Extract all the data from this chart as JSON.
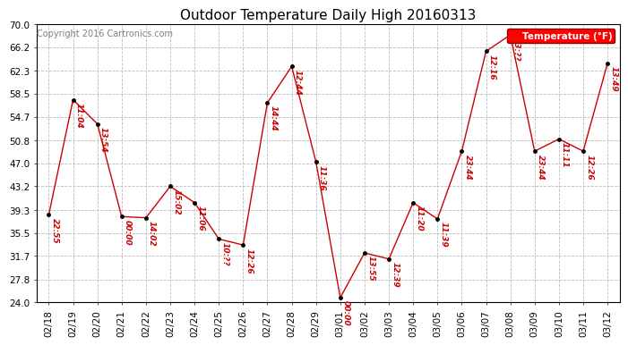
{
  "title": "Outdoor Temperature Daily High 20160313",
  "copyright": "Copyright 2016 Cartronics.com",
  "legend_label": "Temperature (°F)",
  "dates": [
    "02/18",
    "02/19",
    "02/20",
    "02/21",
    "02/22",
    "02/23",
    "02/24",
    "02/25",
    "02/26",
    "02/27",
    "02/28",
    "02/29",
    "03/01",
    "03/02",
    "03/03",
    "03/04",
    "03/05",
    "03/06",
    "03/07",
    "03/08",
    "03/09",
    "03/10",
    "03/11",
    "03/12"
  ],
  "temps": [
    38.5,
    57.5,
    53.5,
    38.2,
    38.0,
    43.2,
    40.5,
    34.5,
    33.5,
    57.0,
    63.0,
    47.2,
    24.8,
    32.2,
    31.2,
    40.5,
    37.8,
    49.0,
    65.5,
    68.2,
    49.0,
    51.0,
    49.0,
    63.5
  ],
  "annotations": [
    "22:55",
    "11:04",
    "13:54",
    "00:00",
    "14:02",
    "15:02",
    "11:06",
    "10:??",
    "12:26",
    "14:44",
    "12:44",
    "11:36",
    "00:00",
    "13:55",
    "12:39",
    "11:20",
    "11:39",
    "23:44",
    "12:16",
    "13:??",
    "23:44",
    "11:11",
    "12:26",
    "13:49"
  ],
  "ylim_min": 24.0,
  "ylim_max": 70.0,
  "yticks": [
    24.0,
    27.8,
    31.7,
    35.5,
    39.3,
    43.2,
    47.0,
    50.8,
    54.7,
    58.5,
    62.3,
    66.2,
    70.0
  ],
  "line_color": "#cc0000",
  "marker_color": "#000000",
  "bg_color": "#ffffff",
  "grid_color": "#bbbbbb",
  "annotation_color": "#cc0000",
  "title_fontsize": 11,
  "annotation_fontsize": 6.5,
  "copyright_fontsize": 7,
  "tick_fontsize": 7.5
}
